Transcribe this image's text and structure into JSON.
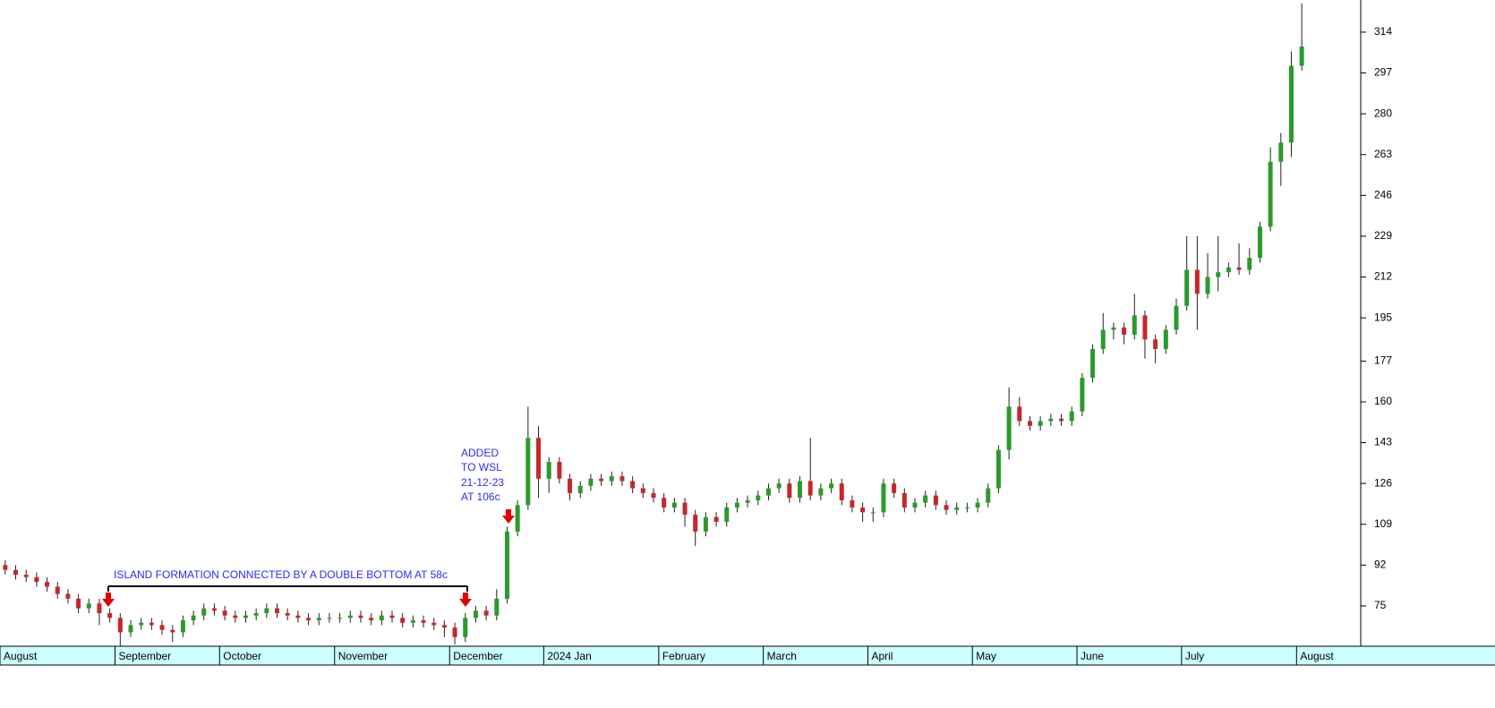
{
  "chart_data": {
    "type": "candlestick",
    "categories": [
      "August",
      null,
      null,
      null,
      null,
      null,
      null,
      null,
      null,
      null,
      null,
      "September",
      null,
      null,
      null,
      null,
      null,
      null,
      null,
      null,
      null,
      "October",
      null,
      null,
      null,
      null,
      null,
      null,
      null,
      null,
      null,
      null,
      "November",
      null,
      null,
      null,
      null,
      null,
      null,
      null,
      null,
      null,
      null,
      "December",
      null,
      null,
      null,
      null,
      null,
      null,
      null,
      null,
      "2024 Jan",
      null,
      null,
      null,
      null,
      null,
      null,
      null,
      null,
      null,
      null,
      "February",
      null,
      null,
      null,
      null,
      null,
      null,
      null,
      null,
      null,
      "March",
      null,
      null,
      null,
      null,
      null,
      null,
      null,
      null,
      null,
      "April",
      null,
      null,
      null,
      null,
      null,
      null,
      null,
      null,
      null,
      "May",
      null,
      null,
      null,
      null,
      null,
      null,
      null,
      null,
      null,
      "June",
      null,
      null,
      null,
      null,
      null,
      null,
      null,
      null,
      null,
      "July",
      null,
      null,
      null,
      null,
      null,
      null,
      null,
      null,
      null,
      null,
      "August"
    ],
    "open": [
      92,
      90,
      88,
      87,
      85,
      83,
      80,
      78,
      74,
      76,
      72,
      70,
      64,
      67,
      68,
      67,
      65,
      64,
      69,
      71,
      74,
      73,
      71,
      70,
      71,
      72,
      74,
      72,
      71,
      70,
      69,
      70,
      70,
      70,
      71,
      70,
      69,
      71,
      70,
      68,
      69,
      68,
      67,
      66,
      62,
      70,
      73,
      71,
      78,
      106,
      117,
      145,
      128,
      135,
      128,
      122,
      125,
      128,
      127,
      129,
      127,
      124,
      122,
      120,
      116,
      118,
      113,
      106,
      112,
      110,
      116,
      118,
      119,
      121,
      124,
      126,
      120,
      127,
      121,
      124,
      126,
      119,
      116,
      114,
      114,
      126,
      122,
      116,
      118,
      121,
      117,
      115,
      116,
      116,
      118,
      124,
      140,
      158,
      152,
      150,
      152,
      153,
      152,
      156,
      170,
      182,
      190,
      191,
      188,
      196,
      186,
      182,
      190,
      200,
      215,
      205,
      212,
      214,
      216,
      215,
      220,
      233,
      260,
      268,
      300
    ],
    "high": [
      94,
      92,
      90,
      89,
      87,
      85,
      82,
      80,
      78,
      78,
      74,
      72,
      69,
      70,
      70,
      69,
      67,
      71,
      73,
      76,
      76,
      75,
      73,
      73,
      74,
      76,
      76,
      74,
      73,
      72,
      72,
      72,
      72,
      73,
      73,
      72,
      73,
      73,
      72,
      71,
      71,
      70,
      69,
      68,
      72,
      75,
      75,
      82,
      108,
      119,
      158,
      150,
      137,
      137,
      130,
      127,
      130,
      130,
      131,
      131,
      129,
      126,
      124,
      122,
      120,
      120,
      115,
      114,
      114,
      118,
      120,
      121,
      123,
      126,
      128,
      128,
      129,
      145,
      126,
      128,
      128,
      121,
      118,
      116,
      128,
      128,
      124,
      120,
      123,
      123,
      119,
      118,
      118,
      120,
      126,
      142,
      166,
      162,
      154,
      154,
      155,
      155,
      158,
      172,
      184,
      197,
      193,
      193,
      205,
      198,
      188,
      192,
      203,
      229,
      229,
      222,
      229,
      218,
      226,
      224,
      235,
      266,
      272,
      306,
      326
    ],
    "low": [
      88,
      86,
      85,
      83,
      81,
      78,
      76,
      72,
      72,
      67,
      68,
      58,
      62,
      65,
      65,
      63,
      60,
      62,
      67,
      69,
      71,
      69,
      68,
      68,
      69,
      70,
      70,
      69,
      68,
      67,
      67,
      68,
      68,
      68,
      68,
      67,
      67,
      68,
      66,
      66,
      66,
      65,
      62,
      59,
      60,
      68,
      69,
      69,
      76,
      104,
      115,
      120,
      122,
      126,
      119,
      120,
      123,
      125,
      125,
      125,
      122,
      120,
      118,
      114,
      114,
      108,
      100,
      104,
      108,
      108,
      114,
      116,
      117,
      119,
      122,
      118,
      118,
      119,
      119,
      122,
      117,
      114,
      110,
      110,
      112,
      120,
      114,
      114,
      116,
      115,
      113,
      113,
      114,
      114,
      116,
      122,
      136,
      150,
      148,
      148,
      150,
      150,
      150,
      154,
      168,
      180,
      186,
      184,
      186,
      178,
      176,
      180,
      188,
      198,
      190,
      203,
      206,
      212,
      213,
      213,
      218,
      231,
      250,
      262,
      298
    ],
    "close": [
      90,
      88,
      87,
      85,
      83,
      80,
      78,
      74,
      76,
      72,
      70,
      64,
      67,
      68,
      67,
      65,
      64,
      69,
      71,
      74,
      73,
      71,
      70,
      71,
      72,
      74,
      72,
      71,
      70,
      69,
      70,
      70,
      70,
      71,
      70,
      69,
      71,
      70,
      68,
      69,
      68,
      67,
      66,
      62,
      70,
      73,
      71,
      78,
      106,
      117,
      145,
      128,
      135,
      128,
      122,
      125,
      128,
      127,
      129,
      127,
      124,
      122,
      120,
      116,
      118,
      113,
      106,
      112,
      110,
      116,
      118,
      119,
      121,
      124,
      126,
      120,
      127,
      121,
      124,
      126,
      119,
      116,
      114,
      114,
      126,
      122,
      116,
      118,
      121,
      117,
      115,
      116,
      116,
      118,
      124,
      140,
      158,
      152,
      150,
      152,
      153,
      152,
      156,
      170,
      182,
      190,
      191,
      188,
      196,
      186,
      182,
      190,
      200,
      215,
      205,
      212,
      214,
      216,
      215,
      220,
      233,
      260,
      268,
      300,
      308
    ],
    "up_color": "#2b9a2b",
    "down_color": "#c8262b",
    "ylim": [
      58.2,
      327.4
    ],
    "yticks": [
      75,
      92,
      109,
      126,
      143,
      160,
      177,
      195,
      212,
      229,
      246,
      263,
      280,
      297,
      314
    ],
    "annotations": [
      "ISLAND FORMATION CONNECTED BY A DOUBLE BOTTOM AT 58c",
      "ADDED",
      "TO WSL",
      "21-12-23",
      "AT 106c"
    ]
  }
}
